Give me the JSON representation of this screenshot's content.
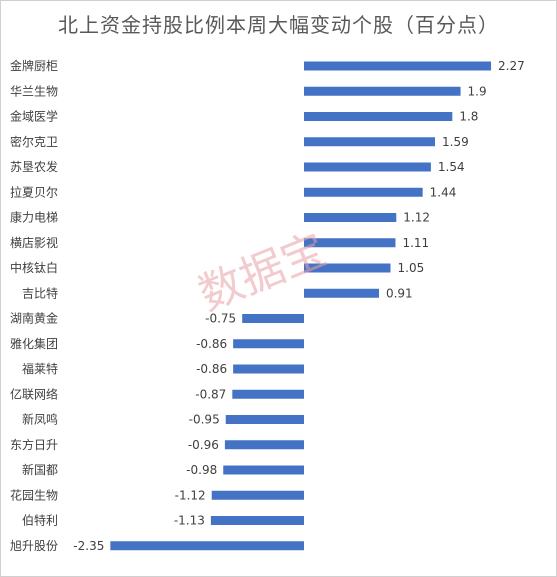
{
  "chart_data": {
    "type": "bar",
    "orientation": "horizontal",
    "title": "北上资金持股比例本周大幅变动个股（百分点）",
    "categories": [
      "金牌厨柜",
      "华兰生物",
      "金域医学",
      "密尔克卫",
      "苏垦农发",
      "拉夏贝尔",
      "康力电梯",
      "横店影视",
      "中核钛白",
      "吉比特",
      "湖南黄金",
      "雅化集团",
      "福莱特",
      "亿联网络",
      "新凤鸣",
      "东方日升",
      "新国都",
      "花园生物",
      "伯特利",
      "旭升股份"
    ],
    "values": [
      2.27,
      1.9,
      1.8,
      1.59,
      1.54,
      1.44,
      1.12,
      1.11,
      1.05,
      0.91,
      -0.75,
      -0.86,
      -0.86,
      -0.87,
      -0.95,
      -0.96,
      -0.98,
      -1.12,
      -1.13,
      -2.35
    ],
    "value_labels": [
      "2.27",
      "1.9",
      "1.8",
      "1.59",
      "1.54",
      "1.44",
      "1.12",
      "1.11",
      "1.05",
      "0.91",
      "-0.75",
      "-0.86",
      "-0.86",
      "-0.87",
      "-0.95",
      "-0.96",
      "-0.98",
      "-1.12",
      "-1.13",
      "-2.35"
    ],
    "bar_color": "#4472c4",
    "grid": false,
    "legend": "none"
  },
  "watermark": "数据宝"
}
